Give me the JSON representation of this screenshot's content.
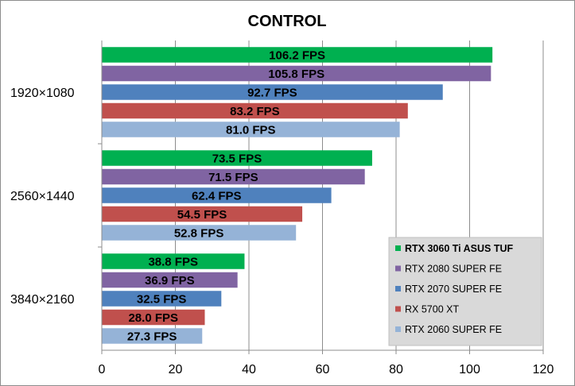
{
  "chart_data": {
    "type": "bar",
    "orientation": "horizontal",
    "title": "CONTROL",
    "xlabel": "",
    "ylabel": "",
    "xlim": [
      0,
      120
    ],
    "xticks": [
      "0",
      "20",
      "40",
      "60",
      "80",
      "100",
      "120"
    ],
    "grid": true,
    "legend_position": "bottom-right",
    "categories": [
      "1920×1080",
      "2560×1440",
      "3840×2160"
    ],
    "unit": "FPS",
    "series": [
      {
        "name": "RTX 3060 Ti ASUS TUF",
        "color": "#00b050",
        "values": [
          106.2,
          73.5,
          38.8
        ],
        "labels": [
          "106.2 FPS",
          "73.5 FPS",
          "38.8 FPS"
        ],
        "bold_legend": true
      },
      {
        "name": "RTX 2080 SUPER FE",
        "color": "#8064a2",
        "values": [
          105.8,
          71.5,
          36.9
        ],
        "labels": [
          "105.8 FPS",
          "71.5 FPS",
          "36.9 FPS"
        ]
      },
      {
        "name": "RTX 2070 SUPER FE",
        "color": "#4f81bd",
        "values": [
          92.7,
          62.4,
          32.5
        ],
        "labels": [
          "92.7 FPS",
          "62.4 FPS",
          "32.5 FPS"
        ]
      },
      {
        "name": "RX 5700 XT",
        "color": "#c0504d",
        "values": [
          83.2,
          54.5,
          28.0
        ],
        "labels": [
          "83.2 FPS",
          "54.5 FPS",
          "28.0 FPS"
        ]
      },
      {
        "name": "RTX 2060 SUPER FE",
        "color": "#95b3d7",
        "values": [
          81.0,
          52.8,
          27.3
        ],
        "labels": [
          "81.0 FPS",
          "52.8 FPS",
          "27.3 FPS"
        ]
      }
    ]
  }
}
